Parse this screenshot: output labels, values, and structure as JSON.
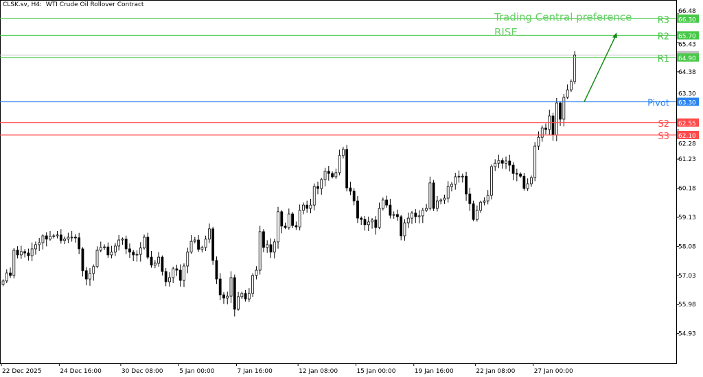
{
  "header": {
    "symbol_timeframe": "CLSK.sv, H4:",
    "description": "WTI Crude Oil Rollover Contract"
  },
  "annotation": {
    "line1": "Trading Central preference",
    "line2": "RISE",
    "color": "#5cc95c"
  },
  "chart_data": {
    "type": "candlestick",
    "title": "",
    "ylim": [
      54.5,
      66.9
    ],
    "y_ticks": [
      "66.48",
      "65.43",
      "64.38",
      "63.30",
      "62.28",
      "61.23",
      "60.18",
      "59.13",
      "58.08",
      "57.03",
      "55.98",
      "54.93"
    ],
    "x_ticks": [
      {
        "bar": 0,
        "label": "22 Dec 2025"
      },
      {
        "bar": 16,
        "label": "24 Dec 16:00"
      },
      {
        "bar": 33,
        "label": "30 Dec 08:00"
      },
      {
        "bar": 49,
        "label": "5 Jan 00:00"
      },
      {
        "bar": 65,
        "label": "7 Jan 16:00"
      },
      {
        "bar": 82,
        "label": "12 Jan 08:00"
      },
      {
        "bar": 98,
        "label": "15 Jan 00:00"
      },
      {
        "bar": 114,
        "label": "19 Jan 16:00"
      },
      {
        "bar": 131,
        "label": "22 Jan 08:00"
      },
      {
        "bar": 147,
        "label": "27 Jan 00:00"
      }
    ],
    "first_open": 56.7,
    "closes": [
      56.83,
      57.12,
      57.03,
      57.94,
      57.77,
      57.89,
      57.84,
      57.74,
      57.99,
      58.14,
      58.21,
      58.46,
      58.34,
      58.44,
      58.46,
      58.49,
      58.29,
      58.34,
      58.41,
      58.41,
      58.39,
      57.99,
      57.2,
      56.9,
      57.1,
      57.35,
      57.94,
      58.04,
      58.06,
      57.77,
      57.87,
      58.09,
      58.31,
      58.34,
      57.99,
      57.87,
      57.77,
      57.79,
      58.02,
      58.41,
      57.69,
      57.4,
      57.47,
      57.69,
      57.17,
      56.8,
      56.95,
      57.27,
      57.22,
      56.85,
      57.37,
      57.87,
      58.26,
      58.31,
      57.97,
      58.04,
      58.34,
      58.71,
      57.57,
      56.9,
      56.33,
      56.21,
      56.28,
      56.95,
      55.81,
      56.26,
      56.38,
      56.18,
      56.38,
      57.03,
      57.22,
      58.61,
      58.04,
      58.14,
      57.87,
      58.24,
      59.33,
      58.81,
      58.76,
      59.25,
      58.83,
      58.78,
      59.38,
      59.57,
      59.45,
      59.57,
      60.24,
      60.17,
      60.49,
      60.79,
      60.71,
      60.59,
      60.74,
      61.36,
      61.58,
      60.19,
      60.07,
      59.72,
      59.1,
      59.05,
      58.86,
      58.96,
      59.03,
      58.76,
      59.45,
      59.75,
      59.57,
      59.2,
      59.23,
      59.15,
      58.46,
      58.93,
      59.1,
      59.28,
      59.15,
      59.18,
      59.38,
      59.45,
      60.37,
      59.45,
      59.72,
      59.75,
      59.82,
      60.24,
      60.32,
      60.59,
      60.61,
      60.61,
      59.97,
      59.62,
      59.05,
      59.38,
      59.67,
      59.72,
      59.92,
      60.96,
      61.08,
      61.18,
      61.08,
      61.16,
      61.01,
      60.71,
      60.69,
      60.61,
      60.17,
      60.34,
      60.56,
      61.7,
      62.02,
      62.35,
      62.3,
      62.79,
      62.1,
      63.26,
      62.67,
      63.46,
      63.73,
      64.03,
      64.99
    ],
    "current_price": 64.99,
    "levels": [
      {
        "name": "R3",
        "value": "66.30",
        "color": "#47c947"
      },
      {
        "name": "R2",
        "value": "65.70",
        "color": "#47c947"
      },
      {
        "name": "R1",
        "value": "64.90",
        "color": "#47c947"
      },
      {
        "name": "Pivot",
        "value": "63.30",
        "color": "#2a84f0"
      },
      {
        "name": "S2",
        "value": "62.55",
        "color": "#ff4a4a"
      },
      {
        "name": "S3",
        "value": "62.10",
        "color": "#ff4a4a"
      }
    ],
    "arrow": {
      "from_price": 63.3,
      "to_price": 65.75,
      "color": "#178a17"
    }
  }
}
